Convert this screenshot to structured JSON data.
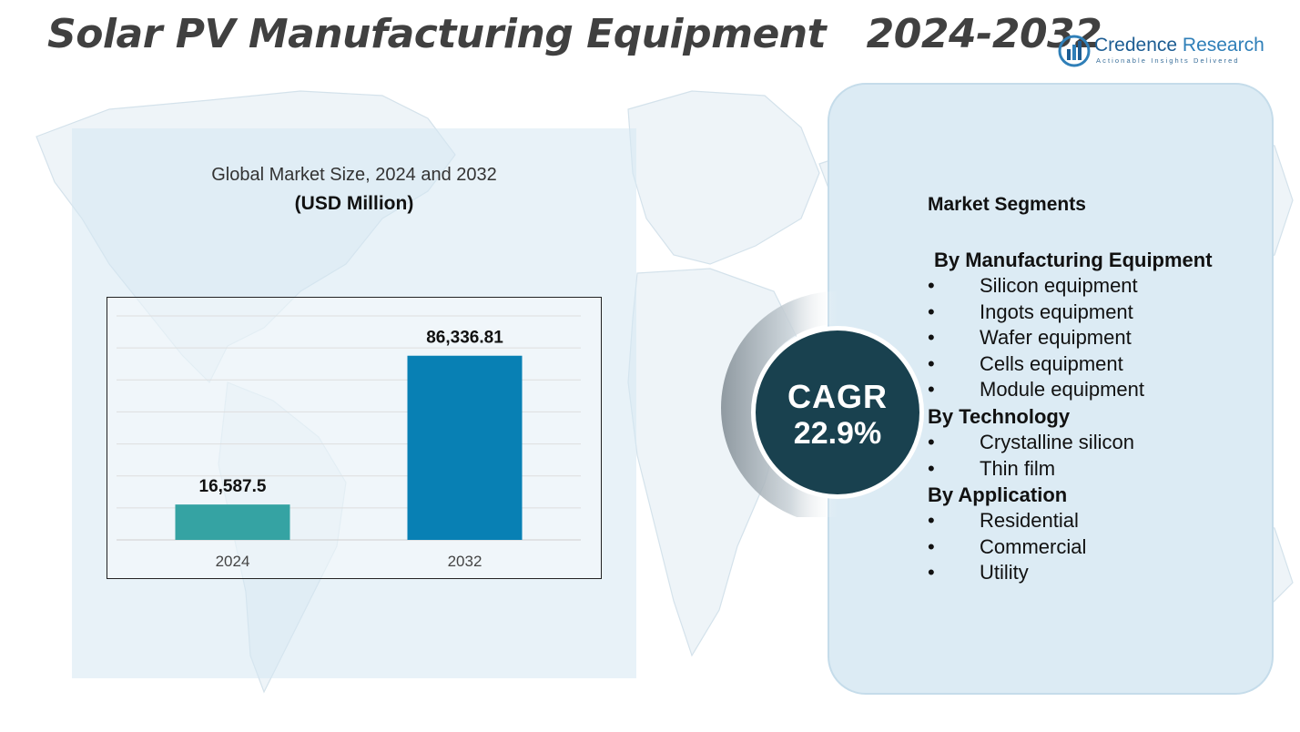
{
  "header": {
    "title": "Solar PV Manufacturing Equipment   2024-2032"
  },
  "logo": {
    "name_part1": "Credence",
    "name_part2": " Research",
    "tagline": "Actionable Insights Delivered"
  },
  "chart_data": {
    "type": "bar",
    "title": "Global Market Size, 2024 and 2032",
    "subtitle": "(USD Million)",
    "categories": [
      "2024",
      "2032"
    ],
    "values": [
      16587.5,
      86336.81
    ],
    "value_labels": [
      "16,587.5",
      "86,336.81"
    ],
    "colors": [
      "#35a3a3",
      "#0880b4"
    ],
    "ylim": [
      0,
      105000
    ],
    "grid": true,
    "xlabel": "",
    "ylabel": ""
  },
  "cagr": {
    "label": "CAGR",
    "value": "22.9%"
  },
  "segments": {
    "heading": "Market Segments",
    "groups": [
      {
        "title": "By Manufacturing Equipment",
        "items": [
          "Silicon equipment",
          "Ingots equipment",
          "Wafer equipment",
          "Cells equipment",
          "Module equipment"
        ]
      },
      {
        "title": "By Technology",
        "items": [
          "Crystalline silicon",
          "Thin film"
        ]
      },
      {
        "title": "By Application",
        "items": [
          "Residential",
          "Commercial",
          "Utility"
        ]
      }
    ],
    "bullet": "•"
  },
  "colors": {
    "title": "#404040",
    "panel_left": "#d6e8f3",
    "panel_right": "#dcebf4",
    "cagr_circle": "#19414f",
    "brand": "#2f7fb8"
  }
}
